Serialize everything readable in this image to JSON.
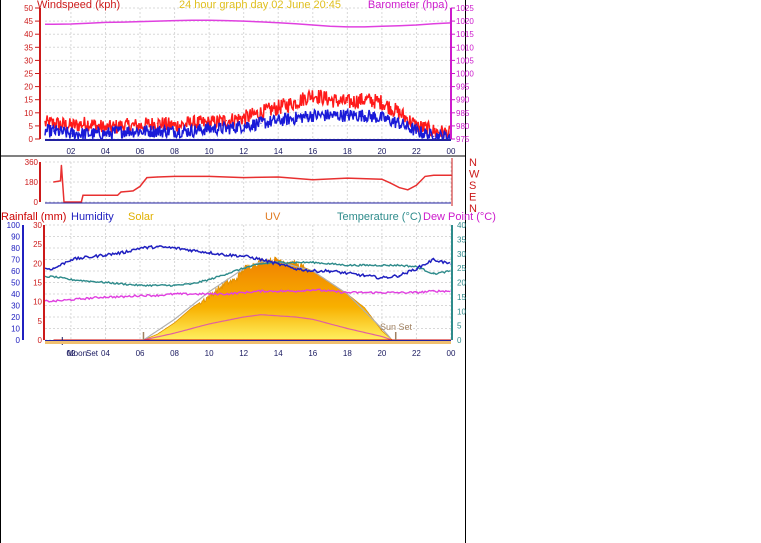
{
  "colors": {
    "wind_avg": "#1a1ad8",
    "wind_gust": "#ff1a1a",
    "barometer": "#e040e0",
    "direction": "#e83030",
    "rainfall": "#cc0000",
    "humidity": "#2020c0",
    "solar": "#f0b000",
    "uv": "#e07a20",
    "temperature": "#2e8b8b",
    "dewpoint": "#e040e0",
    "title": "#e0c020",
    "sun_marker": "#a08060",
    "grid": "#d8d8d8",
    "axis": "#2020a0"
  },
  "panel1": {
    "left_title": "Windspeed (kph)",
    "center_title": "24 hour graph day  02 June 20:45",
    "right_title": "Barometer (hpa)",
    "left_ticks": [
      "50",
      "45",
      "40",
      "35",
      "30",
      "25",
      "20",
      "15",
      "10",
      "5",
      "0"
    ],
    "right_ticks": [
      "1025",
      "1020",
      "1015",
      "1010",
      "1005",
      "1000",
      "995",
      "990",
      "985",
      "980",
      "975"
    ],
    "x_ticks": [
      "02",
      "04",
      "06",
      "08",
      "10",
      "12",
      "14",
      "16",
      "18",
      "20",
      "22",
      "00"
    ]
  },
  "panel2": {
    "left_ticks": [
      "360",
      "180",
      "0"
    ],
    "compass": [
      "N",
      "W",
      "S",
      "E",
      "N"
    ]
  },
  "panel3": {
    "legend": {
      "rainfall": "Rainfall (mm)",
      "humidity": "Humidity",
      "solar": "Solar",
      "uv": "UV",
      "temperature": "Temperature (°C)",
      "dewpoint": "Dew Point (°C)"
    },
    "humidity_ticks": [
      "100",
      "90",
      "80",
      "70",
      "60",
      "50",
      "40",
      "30",
      "20",
      "10",
      "0"
    ],
    "rain_ticks": [
      "30",
      "25",
      "20",
      "15",
      "10",
      "5",
      "0"
    ],
    "temp_ticks": [
      "40",
      "35",
      "30",
      "25",
      "20",
      "15",
      "10",
      "5",
      "0"
    ],
    "x_ticks": [
      "02",
      "04",
      "06",
      "08",
      "10",
      "12",
      "14",
      "16",
      "18",
      "20",
      "22",
      "00"
    ],
    "moon_label": "Moon",
    "moonset_label": "Set",
    "sunset_label": "Sun Set"
  },
  "chart_data": [
    {
      "type": "line",
      "title": "24 hour graph day  02 June 20:45",
      "x_unit": "hour",
      "xlim": [
        0.5,
        24
      ],
      "ylim": [
        0,
        50
      ],
      "y2lim": [
        975,
        1025
      ],
      "ylabel": "Windspeed (kph)",
      "y2label": "Barometer (hpa)",
      "series": [
        {
          "name": "Windspeed gust",
          "axis": "left",
          "x": [
            1,
            2,
            3,
            4,
            5,
            6,
            7,
            8,
            9,
            10,
            11,
            12,
            13,
            14,
            15,
            16,
            17,
            18,
            19,
            20,
            21,
            22,
            23,
            24
          ],
          "values": [
            6,
            5,
            6,
            4,
            5,
            5,
            6,
            5,
            6,
            6,
            7,
            8,
            10,
            12,
            14,
            17,
            15,
            14,
            15,
            14,
            10,
            5,
            3,
            2
          ]
        },
        {
          "name": "Windspeed avg",
          "axis": "left",
          "x": [
            1,
            2,
            3,
            4,
            5,
            6,
            7,
            8,
            9,
            10,
            11,
            12,
            13,
            14,
            15,
            16,
            17,
            18,
            19,
            20,
            21,
            22,
            23,
            24
          ],
          "values": [
            3,
            2,
            2,
            2,
            3,
            3,
            3,
            3,
            3,
            4,
            4,
            5,
            6,
            7,
            8,
            9,
            9,
            9,
            9,
            8,
            6,
            3,
            1,
            1
          ]
        },
        {
          "name": "Barometer",
          "axis": "right",
          "x": [
            1,
            2,
            3,
            4,
            5,
            6,
            7,
            8,
            9,
            10,
            11,
            12,
            13,
            14,
            15,
            16,
            17,
            18,
            19,
            20,
            21,
            22,
            23,
            24
          ],
          "values": [
            1018.8,
            1018.9,
            1019.2,
            1019.5,
            1019.6,
            1019.8,
            1020.0,
            1020.2,
            1020.3,
            1020.3,
            1020.2,
            1020.0,
            1019.7,
            1019.4,
            1019.0,
            1018.5,
            1018.0,
            1017.8,
            1017.8,
            1018.0,
            1018.2,
            1018.5,
            1019.0,
            1019.3
          ]
        }
      ]
    },
    {
      "type": "line",
      "x_unit": "hour",
      "xlim": [
        0.5,
        24
      ],
      "ylim": [
        0,
        360
      ],
      "ylabel": "",
      "series": [
        {
          "name": "Wind direction",
          "x": [
            1,
            1.4,
            1.45,
            1.6,
            2.6,
            2.7,
            4.7,
            4.9,
            5.6,
            6,
            6.4,
            7,
            8,
            10,
            12,
            14,
            16,
            18,
            20,
            20.5,
            21,
            21.5,
            22,
            22.5,
            23,
            24
          ],
          "values": [
            180,
            190,
            330,
            0,
            0,
            60,
            60,
            90,
            100,
            140,
            220,
            225,
            230,
            230,
            220,
            225,
            200,
            215,
            205,
            170,
            130,
            110,
            150,
            230,
            240,
            240
          ]
        }
      ]
    },
    {
      "type": "line",
      "x_unit": "hour",
      "xlim": [
        0.5,
        24
      ],
      "ylim": [
        0,
        100
      ],
      "y2lim": [
        0,
        40
      ],
      "series": [
        {
          "name": "Humidity",
          "axis": "humidity",
          "x": [
            1,
            2,
            3,
            4,
            5,
            6,
            7,
            8,
            9,
            10,
            11,
            12,
            13,
            14,
            15,
            16,
            17,
            18,
            19,
            20,
            21,
            22,
            23,
            24
          ],
          "values": [
            62,
            70,
            72,
            74,
            76,
            80,
            81,
            80,
            78,
            76,
            74,
            73,
            70,
            66,
            62,
            60,
            60,
            58,
            56,
            54,
            56,
            62,
            70,
            66
          ]
        },
        {
          "name": "Temperature (°C)",
          "axis": "temp",
          "x": [
            1,
            2,
            3,
            4,
            5,
            6,
            7,
            8,
            9,
            10,
            11,
            12,
            13,
            14,
            15,
            16,
            17,
            18,
            19,
            20,
            21,
            22,
            23,
            24
          ],
          "values": [
            22,
            21,
            20.5,
            20,
            19.5,
            19,
            19,
            19,
            19.5,
            21,
            23,
            25,
            26.5,
            27,
            27,
            27,
            26.5,
            26,
            26,
            26,
            26,
            25.5,
            23,
            24
          ]
        },
        {
          "name": "Dew Point (°C)",
          "axis": "temp",
          "x": [
            1,
            2,
            3,
            4,
            5,
            6,
            7,
            8,
            9,
            10,
            11,
            12,
            13,
            14,
            15,
            16,
            17,
            18,
            19,
            20,
            21,
            22,
            23,
            24
          ],
          "values": [
            13.5,
            14,
            14.5,
            15,
            15,
            15.5,
            15.5,
            16,
            16,
            16,
            16,
            16.5,
            17,
            17,
            17,
            17.5,
            17,
            16.5,
            16.5,
            16.5,
            16.5,
            16.5,
            17,
            17
          ]
        },
        {
          "name": "Solar",
          "axis": "humidity",
          "x": [
            6.2,
            7,
            8,
            9,
            10,
            11,
            11.5,
            12,
            13,
            14,
            15,
            16,
            17,
            18,
            19,
            20,
            20.6
          ],
          "values": [
            0,
            5,
            15,
            28,
            38,
            50,
            52,
            62,
            68,
            70,
            66,
            60,
            50,
            40,
            28,
            8,
            0
          ]
        },
        {
          "name": "UV",
          "axis": "humidity",
          "x": [
            6.2,
            8,
            10,
            12,
            13,
            14,
            15,
            16,
            18,
            20,
            20.6
          ],
          "values": [
            0,
            6,
            14,
            20,
            22,
            21,
            20,
            18,
            10,
            3,
            0
          ]
        },
        {
          "name": "Solar max",
          "axis": "humidity",
          "x": [
            6.2,
            8,
            10,
            12,
            13,
            14,
            16,
            18,
            20,
            20.6
          ],
          "values": [
            0,
            18,
            42,
            62,
            68,
            68,
            60,
            40,
            10,
            0
          ]
        },
        {
          "name": "Rainfall (mm)",
          "axis": "rain",
          "x": [
            1,
            24
          ],
          "values": [
            0,
            0
          ]
        }
      ],
      "markers": {
        "sunrise_hour": 6.2,
        "sunset_hour": 20.8,
        "moonset_hour": 1.5
      }
    }
  ]
}
